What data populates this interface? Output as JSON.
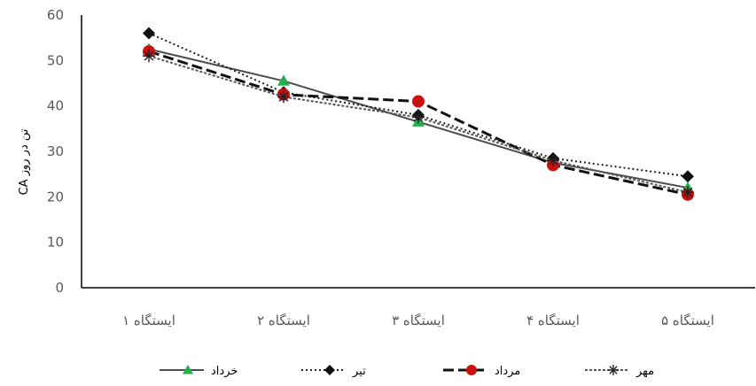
{
  "chart_data": {
    "type": "line",
    "ylabel": "CA تن در روز",
    "ylim": [
      0,
      60
    ],
    "ytick_step": 10,
    "grid": false,
    "legend_position": "bottom",
    "categories": [
      "ایستگاه ۱",
      "ایستگاه ۲",
      "ایستگاه ۳",
      "ایستگاه ۴",
      "ایستگاه ۵"
    ],
    "series": [
      {
        "name": "خرداد",
        "values": [
          52.5,
          45.5,
          36.5,
          27.5,
          22.0
        ],
        "color": "#4d4d4d",
        "marker": "triangle",
        "marker_color": "#22b04b",
        "dash": "none"
      },
      {
        "name": "تیر",
        "values": [
          56.0,
          43.0,
          38.0,
          28.5,
          24.5
        ],
        "color": "#222222",
        "marker": "diamond",
        "marker_color": "#111111",
        "dash": "2 3"
      },
      {
        "name": "مرداد",
        "values": [
          52.0,
          42.5,
          41.0,
          27.0,
          20.5
        ],
        "color": "#111111",
        "marker": "circle",
        "marker_color": "#cc1111",
        "dash": "12 5"
      },
      {
        "name": "مهر",
        "values": [
          51.0,
          42.0,
          37.5,
          28.0,
          21.0
        ],
        "color": "#555555",
        "marker": "asterisk",
        "marker_color": "#222222",
        "dash": "3 2"
      }
    ]
  }
}
